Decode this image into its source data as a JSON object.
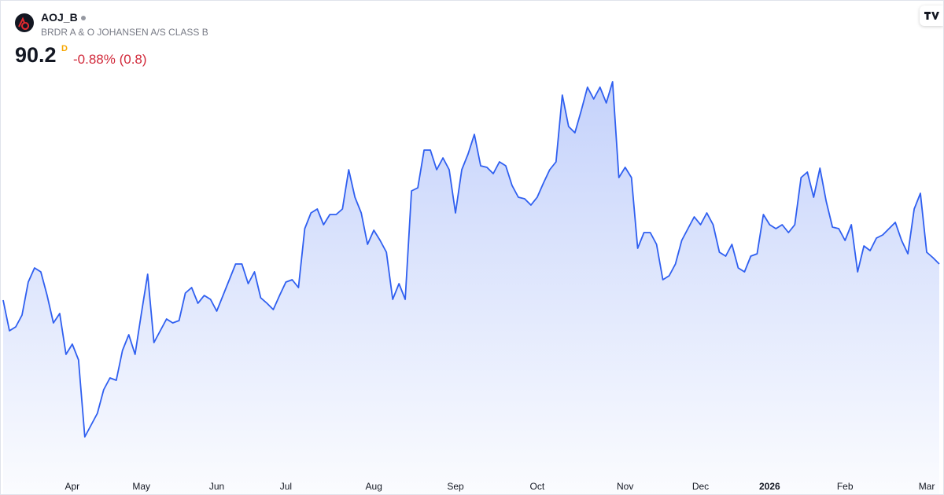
{
  "header": {
    "symbol": "AOJ_B",
    "name": "BRDR A & O JOHANSEN A/S CLASS B",
    "price": "90.2",
    "interval": "D",
    "change": "-0.88% (0.8)"
  },
  "chart_data": {
    "type": "area",
    "color": "#2f5ff0",
    "categories": [
      null,
      null,
      null,
      null,
      null,
      null,
      null,
      null,
      null,
      null,
      null,
      "Apr",
      null,
      null,
      null,
      null,
      null,
      null,
      null,
      null,
      null,
      null,
      "May",
      null,
      null,
      null,
      null,
      null,
      null,
      null,
      null,
      null,
      null,
      null,
      "Jun",
      null,
      null,
      null,
      null,
      null,
      null,
      null,
      null,
      null,
      null,
      "Jul",
      null,
      null,
      null,
      null,
      null,
      null,
      null,
      null,
      null,
      null,
      null,
      null,
      null,
      "Aug",
      null,
      null,
      null,
      null,
      null,
      null,
      null,
      null,
      null,
      null,
      null,
      null,
      "Sep",
      null,
      null,
      null,
      null,
      null,
      null,
      null,
      null,
      null,
      null,
      null,
      null,
      "Oct",
      null,
      null,
      null,
      null,
      null,
      null,
      null,
      null,
      null,
      null,
      null,
      null,
      null,
      "Nov",
      null,
      null,
      null,
      null,
      null,
      null,
      null,
      null,
      null,
      null,
      null,
      "Dec",
      null,
      null,
      null,
      null,
      null,
      null,
      null,
      null,
      null,
      null,
      "2026",
      null,
      null,
      null,
      null,
      null,
      null,
      null,
      null,
      null,
      null,
      null,
      "Feb",
      null,
      null,
      null,
      null,
      null,
      null,
      null,
      null,
      null,
      null,
      null,
      null,
      "Mar",
      null,
      null
    ],
    "values": [
      85.6,
      81.7,
      82.2,
      83.7,
      87.9,
      89.7,
      89.2,
      86.2,
      82.7,
      83.9,
      78.7,
      80.0,
      78.0,
      68.2,
      69.7,
      71.2,
      74.2,
      75.7,
      75.4,
      79.2,
      81.2,
      78.7,
      83.9,
      88.9,
      80.2,
      81.7,
      83.2,
      82.7,
      83.0,
      86.5,
      87.2,
      85.2,
      86.2,
      85.7,
      84.2,
      86.2,
      88.2,
      90.2,
      90.2,
      87.7,
      89.2,
      85.9,
      85.2,
      84.4,
      86.2,
      87.9,
      88.2,
      87.2,
      94.7,
      96.7,
      97.2,
      95.2,
      96.5,
      96.5,
      97.2,
      102.2,
      98.7,
      96.7,
      92.7,
      94.5,
      93.2,
      91.7,
      85.7,
      87.7,
      85.7,
      99.5,
      99.9,
      104.7,
      104.7,
      102.2,
      103.7,
      102.2,
      96.7,
      102.2,
      104.2,
      106.7,
      102.7,
      102.5,
      101.7,
      103.2,
      102.7,
      100.2,
      98.7,
      98.5,
      97.7,
      98.7,
      100.5,
      102.2,
      103.2,
      111.7,
      107.7,
      106.9,
      109.7,
      112.7,
      111.2,
      112.7,
      110.7,
      113.4,
      101.2,
      102.5,
      101.2,
      92.2,
      94.2,
      94.2,
      92.7,
      88.2,
      88.7,
      90.2,
      93.2,
      94.7,
      96.2,
      95.2,
      96.7,
      95.2,
      91.7,
      91.2,
      92.7,
      89.7,
      89.2,
      91.2,
      91.5,
      96.5,
      95.2,
      94.7,
      95.2,
      94.2,
      95.2,
      101.2,
      101.9,
      98.7,
      102.4,
      98.2,
      94.9,
      94.7,
      93.2,
      95.2,
      89.2,
      92.5,
      91.9,
      93.5,
      93.9,
      94.7,
      95.5,
      93.2,
      91.5,
      97.2,
      99.2,
      91.7,
      91.0,
      90.2
    ],
    "ylim": [
      63,
      116
    ],
    "grid": false
  }
}
